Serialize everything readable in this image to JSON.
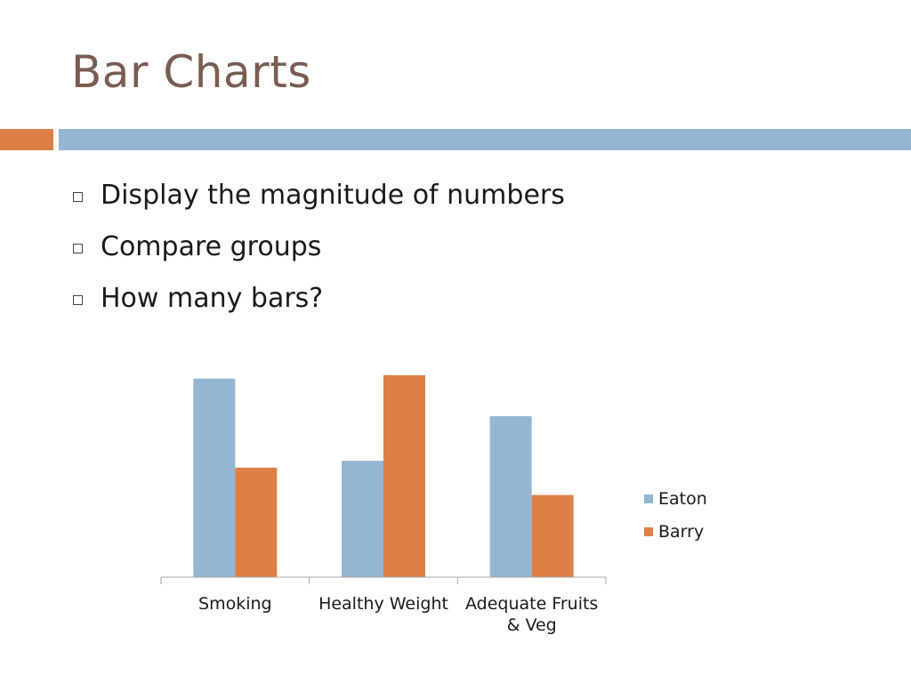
{
  "slide": {
    "title": "Bar Charts",
    "bullets": [
      "Display the magnitude of numbers",
      "Compare groups",
      "How many bars?"
    ]
  },
  "colors": {
    "title": "#7a5c52",
    "accent_orange": "#dd8047",
    "accent_blue": "#94b6d2"
  },
  "chart_data": {
    "type": "bar",
    "categories": [
      "Smoking",
      "Healthy Weight",
      "Adequate Fruits & Veg"
    ],
    "category_lines": [
      [
        "Smoking"
      ],
      [
        "Healthy Weight"
      ],
      [
        "Adequate Fruits",
        "& Veg"
      ]
    ],
    "series": [
      {
        "name": "Eaton",
        "color": "#94b6d2",
        "values": [
          5.8,
          3.4,
          4.7
        ]
      },
      {
        "name": "Barry",
        "color": "#dd8047",
        "values": [
          3.2,
          5.9,
          2.4
        ]
      }
    ],
    "ylim": [
      0,
      6
    ],
    "grid": false,
    "legend": "right"
  }
}
